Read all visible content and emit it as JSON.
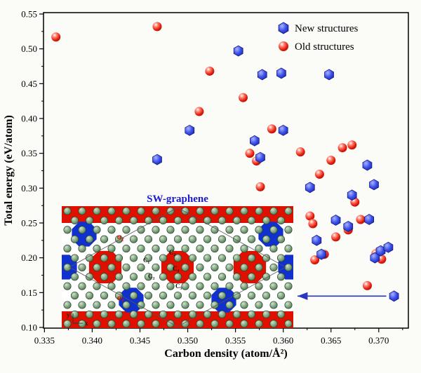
{
  "chart_data": {
    "type": "scatter",
    "title": "",
    "xlabel": "Carbon density (atom/Å²)",
    "ylabel": "Total energy (eV/atom)",
    "xlim": [
      0.3349,
      0.3731
    ],
    "ylim": [
      0.099,
      0.552
    ],
    "x_ticks": [
      0.335,
      0.34,
      0.345,
      0.35,
      0.355,
      0.36,
      0.365,
      0.37
    ],
    "y_ticks": [
      0.1,
      0.15,
      0.2,
      0.25,
      0.3,
      0.35,
      0.4,
      0.45,
      0.5,
      0.55
    ],
    "grid": false,
    "legend_position": "top-right",
    "series": [
      {
        "name": "New structures",
        "marker": "hexagon",
        "color": "#1a2bd8",
        "points": [
          [
            0.3468,
            0.341
          ],
          [
            0.3502,
            0.383
          ],
          [
            0.3553,
            0.497
          ],
          [
            0.357,
            0.368
          ],
          [
            0.3578,
            0.463
          ],
          [
            0.3576,
            0.344
          ],
          [
            0.3598,
            0.465
          ],
          [
            0.36,
            0.383
          ],
          [
            0.3628,
            0.301
          ],
          [
            0.3648,
            0.463
          ],
          [
            0.3635,
            0.225
          ],
          [
            0.364,
            0.205
          ],
          [
            0.3655,
            0.254
          ],
          [
            0.3668,
            0.245
          ],
          [
            0.3672,
            0.29
          ],
          [
            0.3688,
            0.333
          ],
          [
            0.3695,
            0.305
          ],
          [
            0.369,
            0.255
          ],
          [
            0.3696,
            0.2
          ],
          [
            0.3702,
            0.21
          ],
          [
            0.371,
            0.215
          ],
          [
            0.3716,
            0.145
          ]
        ]
      },
      {
        "name": "Old structures",
        "marker": "sphere",
        "color": "#e02010",
        "points": [
          [
            0.3362,
            0.517
          ],
          [
            0.3468,
            0.532
          ],
          [
            0.3523,
            0.468
          ],
          [
            0.3512,
            0.41
          ],
          [
            0.3558,
            0.43
          ],
          [
            0.3565,
            0.35
          ],
          [
            0.3572,
            0.339
          ],
          [
            0.3576,
            0.302
          ],
          [
            0.3588,
            0.385
          ],
          [
            0.3618,
            0.352
          ],
          [
            0.3628,
            0.26
          ],
          [
            0.3631,
            0.249
          ],
          [
            0.3633,
            0.197
          ],
          [
            0.3638,
            0.32
          ],
          [
            0.3643,
            0.205
          ],
          [
            0.365,
            0.34
          ],
          [
            0.3655,
            0.23
          ],
          [
            0.3662,
            0.358
          ],
          [
            0.3672,
            0.362
          ],
          [
            0.3668,
            0.24
          ],
          [
            0.3675,
            0.28
          ],
          [
            0.3681,
            0.255
          ],
          [
            0.3688,
            0.16
          ],
          [
            0.3697,
            0.206
          ],
          [
            0.3703,
            0.198
          ]
        ]
      }
    ],
    "annotation_arrow": {
      "from_point": [
        0.3716,
        0.145
      ],
      "to": "inset",
      "color": "#2a35c0"
    }
  },
  "inset": {
    "title": "SW-graphene",
    "title_color": "#1b1bd0",
    "labels": {
      "a2": "a₂",
      "a1": "a₁",
      "c1": "C₁",
      "c2": "C₂",
      "c3": "C₃",
      "c4": "C₄",
      "c5": "C₅",
      "axis_y": "y",
      "axis_x": "x"
    },
    "colors": {
      "atom_green": "#6f9d72",
      "ring_red": "#e01000",
      "ring_blue": "#1030d0"
    }
  }
}
